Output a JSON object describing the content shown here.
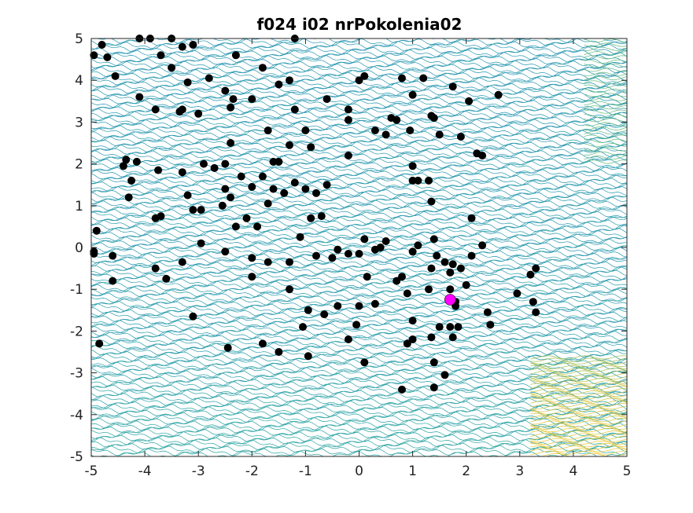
{
  "chart_data": {
    "type": "scatter",
    "title": "f024 i02 nrPokolenia02",
    "xlabel": "",
    "ylabel": "",
    "xlim": [
      -5,
      5
    ],
    "ylim": [
      -5,
      5
    ],
    "x_ticks": [
      -5,
      -4,
      -3,
      -2,
      -1,
      0,
      1,
      2,
      3,
      4,
      5
    ],
    "y_ticks": [
      -5,
      -4,
      -3,
      -2,
      -1,
      0,
      1,
      2,
      3,
      4,
      5
    ],
    "x_tick_labels": [
      "-5",
      "-4",
      "-3",
      "-2",
      "-1",
      "0",
      "1",
      "2",
      "3",
      "4",
      "5"
    ],
    "y_tick_labels": [
      "-5",
      "-4",
      "-3",
      "-2",
      "-1",
      "0",
      "1",
      "2",
      "3",
      "4",
      "5"
    ],
    "grid": false,
    "background": "contour map",
    "colormap": [
      "#1f3da8",
      "#1b7fc0",
      "#2aa3a3",
      "#6cbd6b",
      "#c9c03c",
      "#f2c62a"
    ],
    "series": [
      {
        "color": "#000000",
        "marker": "filled-circle",
        "points": [
          [
            -4.95,
            4.6
          ],
          [
            -4.8,
            4.85
          ],
          [
            -4.7,
            4.55
          ],
          [
            -4.55,
            4.1
          ],
          [
            -4.1,
            5.0
          ],
          [
            -3.9,
            5.0
          ],
          [
            -3.7,
            4.6
          ],
          [
            -3.5,
            5.0
          ],
          [
            -3.3,
            4.8
          ],
          [
            -3.1,
            4.85
          ],
          [
            -1.2,
            5.0
          ],
          [
            -4.1,
            3.6
          ],
          [
            -3.8,
            3.3
          ],
          [
            -3.5,
            4.3
          ],
          [
            -3.3,
            3.3
          ],
          [
            -3.2,
            3.95
          ],
          [
            -2.8,
            4.05
          ],
          [
            -2.5,
            3.75
          ],
          [
            -2.4,
            3.35
          ],
          [
            -2.3,
            4.6
          ],
          [
            -1.8,
            4.3
          ],
          [
            -1.5,
            3.9
          ],
          [
            -1.3,
            4.0
          ],
          [
            -3.35,
            3.25
          ],
          [
            -3.0,
            3.2
          ],
          [
            -2.35,
            3.55
          ],
          [
            -2.0,
            3.55
          ],
          [
            -1.7,
            2.8
          ],
          [
            -1.6,
            2.05
          ],
          [
            -1.2,
            3.3
          ],
          [
            -1.0,
            2.8
          ],
          [
            -0.6,
            3.55
          ],
          [
            -0.2,
            3.3
          ],
          [
            -0.2,
            3.05
          ],
          [
            0.0,
            4.0
          ],
          [
            0.1,
            4.1
          ],
          [
            -4.35,
            2.1
          ],
          [
            -4.15,
            2.05
          ],
          [
            -3.75,
            1.85
          ],
          [
            -3.3,
            1.8
          ],
          [
            -2.9,
            2.0
          ],
          [
            -2.7,
            1.9
          ],
          [
            -2.5,
            2.0
          ],
          [
            -2.4,
            2.5
          ],
          [
            -2.2,
            1.7
          ],
          [
            -2.0,
            1.45
          ],
          [
            -1.8,
            1.7
          ],
          [
            -1.5,
            2.05
          ],
          [
            -1.3,
            2.45
          ],
          [
            -1.2,
            1.55
          ],
          [
            -0.9,
            2.4
          ],
          [
            -0.6,
            1.5
          ],
          [
            -0.2,
            2.2
          ],
          [
            -4.4,
            1.95
          ],
          [
            -4.25,
            1.6
          ],
          [
            -4.3,
            1.2
          ],
          [
            -3.8,
            0.7
          ],
          [
            -3.7,
            0.75
          ],
          [
            -3.2,
            1.25
          ],
          [
            -3.1,
            0.9
          ],
          [
            -2.95,
            0.9
          ],
          [
            -2.55,
            1.0
          ],
          [
            -2.5,
            1.4
          ],
          [
            -2.4,
            1.2
          ],
          [
            -2.3,
            0.5
          ],
          [
            -2.1,
            0.7
          ],
          [
            -1.9,
            0.5
          ],
          [
            -1.7,
            1.05
          ],
          [
            -1.6,
            1.4
          ],
          [
            -1.4,
            1.3
          ],
          [
            -1.0,
            1.4
          ],
          [
            -0.8,
            1.3
          ],
          [
            -0.9,
            0.7
          ],
          [
            -0.7,
            0.75
          ],
          [
            -4.9,
            0.4
          ],
          [
            -4.95,
            -0.1
          ],
          [
            -4.95,
            -0.15
          ],
          [
            -4.6,
            -0.2
          ],
          [
            -3.8,
            -0.5
          ],
          [
            -3.6,
            -0.75
          ],
          [
            -3.3,
            -0.35
          ],
          [
            -2.95,
            0.1
          ],
          [
            -2.5,
            -0.1
          ],
          [
            -2.0,
            -0.25
          ],
          [
            -1.7,
            -0.35
          ],
          [
            -1.3,
            -0.35
          ],
          [
            -1.1,
            0.25
          ],
          [
            -0.8,
            -0.2
          ],
          [
            -0.5,
            -0.25
          ],
          [
            -0.4,
            -0.05
          ],
          [
            -0.2,
            -0.15
          ],
          [
            -4.6,
            -0.8
          ],
          [
            -4.85,
            -2.3
          ],
          [
            -3.1,
            -1.65
          ],
          [
            -2.45,
            -2.4
          ],
          [
            -2.0,
            -0.7
          ],
          [
            -1.8,
            -2.3
          ],
          [
            -1.5,
            -2.5
          ],
          [
            -1.3,
            -1.0
          ],
          [
            -1.05,
            -1.9
          ],
          [
            -0.95,
            -2.6
          ],
          [
            -0.95,
            -1.5
          ],
          [
            -0.65,
            -1.6
          ],
          [
            -0.4,
            -1.4
          ],
          [
            -0.2,
            -2.2
          ],
          [
            -0.05,
            -1.85
          ],
          [
            0.0,
            -1.4
          ],
          [
            0.1,
            -2.75
          ],
          [
            0.15,
            -0.7
          ],
          [
            0.0,
            -0.15
          ],
          [
            0.1,
            0.2
          ],
          [
            0.3,
            -0.05
          ],
          [
            0.4,
            0.0
          ],
          [
            0.5,
            0.15
          ],
          [
            0.3,
            -1.35
          ],
          [
            0.7,
            -0.8
          ],
          [
            0.8,
            -0.7
          ],
          [
            0.9,
            -1.1
          ],
          [
            1.0,
            -0.1
          ],
          [
            1.1,
            0.05
          ],
          [
            1.3,
            -1.0
          ],
          [
            1.35,
            -0.5
          ],
          [
            1.45,
            -0.2
          ],
          [
            1.6,
            -0.35
          ],
          [
            1.7,
            -0.6
          ],
          [
            1.75,
            -0.4
          ],
          [
            1.9,
            -0.5
          ],
          [
            2.0,
            -0.9
          ],
          [
            2.1,
            -0.2
          ],
          [
            2.3,
            0.05
          ],
          [
            1.7,
            -1.0
          ],
          [
            1.8,
            -1.3
          ],
          [
            1.8,
            -1.4
          ],
          [
            1.7,
            -1.9
          ],
          [
            1.85,
            -1.9
          ],
          [
            1.75,
            -2.15
          ],
          [
            1.35,
            -2.15
          ],
          [
            1.5,
            -1.9
          ],
          [
            1.0,
            -1.75
          ],
          [
            1.0,
            -2.2
          ],
          [
            0.9,
            -2.3
          ],
          [
            1.4,
            -2.75
          ],
          [
            1.6,
            -3.05
          ],
          [
            0.8,
            -3.4
          ],
          [
            1.4,
            -3.35
          ],
          [
            2.4,
            -1.55
          ],
          [
            2.45,
            -1.85
          ],
          [
            2.95,
            -1.1
          ],
          [
            3.2,
            -0.65
          ],
          [
            3.25,
            -1.3
          ],
          [
            3.3,
            -1.55
          ],
          [
            3.3,
            -0.5
          ],
          [
            0.3,
            2.8
          ],
          [
            0.5,
            2.7
          ],
          [
            0.6,
            3.1
          ],
          [
            0.7,
            3.05
          ],
          [
            0.8,
            4.05
          ],
          [
            1.0,
            3.65
          ],
          [
            1.2,
            4.05
          ],
          [
            1.35,
            3.15
          ],
          [
            1.4,
            3.1
          ],
          [
            1.5,
            2.7
          ],
          [
            1.75,
            3.85
          ],
          [
            2.05,
            3.5
          ],
          [
            2.6,
            3.65
          ],
          [
            1.9,
            2.65
          ],
          [
            2.2,
            2.25
          ],
          [
            2.3,
            2.2
          ],
          [
            1.0,
            1.95
          ],
          [
            1.0,
            1.6
          ],
          [
            1.1,
            1.6
          ],
          [
            1.3,
            1.6
          ],
          [
            1.35,
            1.1
          ],
          [
            2.1,
            0.7
          ],
          [
            0.95,
            2.8
          ],
          [
            1.4,
            0.2
          ]
        ]
      },
      {
        "color": "#ff00ff",
        "marker": "filled-circle",
        "points": [
          [
            1.7,
            -1.25
          ]
        ]
      }
    ]
  }
}
